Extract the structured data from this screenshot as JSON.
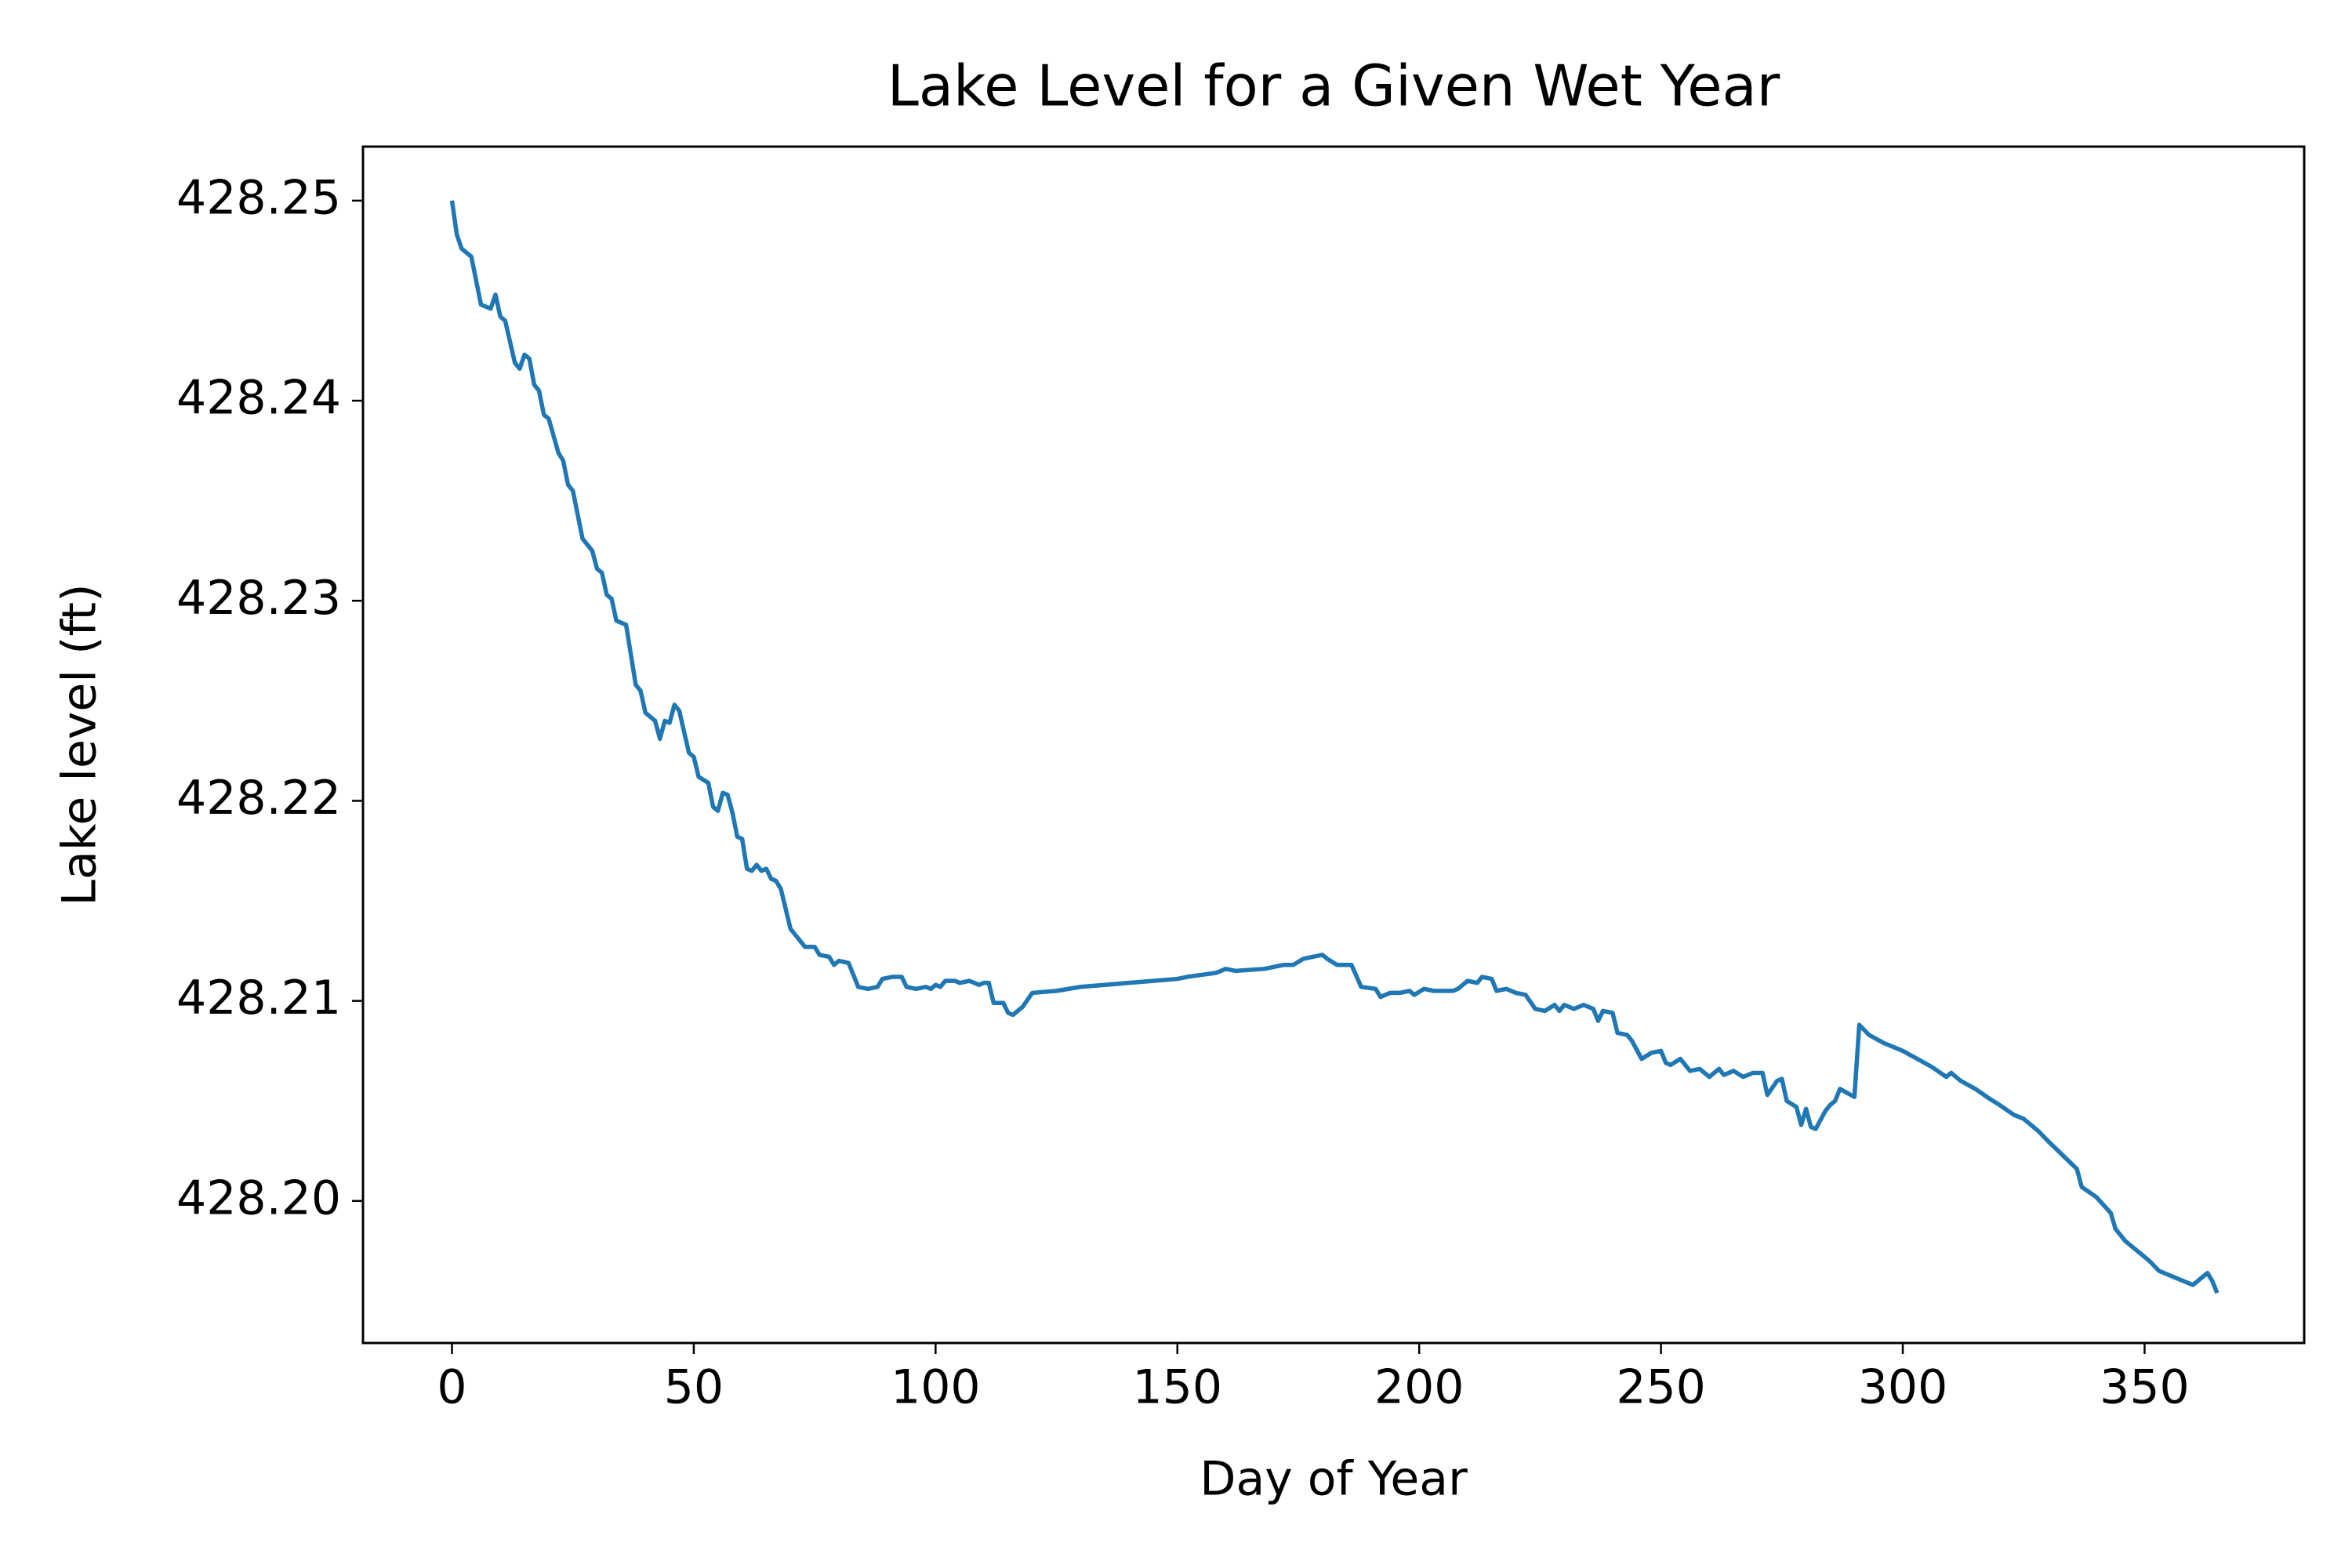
{
  "chart_data": {
    "type": "line",
    "title": "Lake Level for a Given Wet Year",
    "xlabel": "Day of Year",
    "ylabel": "Lake level (ft)",
    "color": "#1f77b4",
    "xlim": [
      -18.4,
      383.0
    ],
    "ylim": [
      428.1929,
      428.2527
    ],
    "xticks": [
      0,
      50,
      100,
      150,
      200,
      250,
      300,
      350
    ],
    "yticks": [
      {
        "value": 428.2,
        "label": "428.20"
      },
      428.21,
      428.22,
      428.23,
      428.24,
      428.25
    ],
    "x": [
      0,
      1,
      2,
      4,
      6,
      8,
      9,
      10,
      11,
      13,
      14,
      15,
      16,
      17,
      18,
      19,
      20,
      22,
      23,
      24,
      25,
      27,
      29,
      30,
      31,
      32,
      33,
      34,
      35,
      36,
      38,
      39,
      40,
      42,
      43,
      44,
      45,
      46,
      47,
      49,
      50,
      51,
      53,
      54,
      55,
      56,
      57,
      58,
      59,
      60,
      61,
      62,
      63,
      64,
      65,
      66,
      67,
      68,
      70,
      71,
      73,
      75,
      76,
      78,
      79,
      80,
      82,
      84,
      86,
      88,
      89,
      91,
      93,
      94,
      96,
      98,
      99,
      100,
      101,
      102,
      104,
      105,
      107,
      109,
      110,
      111,
      112,
      114,
      115,
      116,
      118,
      120,
      125,
      130,
      135,
      140,
      145,
      150,
      152,
      155,
      158,
      160,
      162,
      168,
      172,
      174,
      176,
      178,
      180,
      181,
      183,
      186,
      188,
      191,
      192,
      194,
      196,
      198,
      199,
      201,
      203,
      207,
      208,
      210,
      212,
      213,
      215,
      216,
      218,
      220,
      222,
      224,
      226,
      228,
      229,
      230,
      232,
      234,
      236,
      237,
      238,
      240,
      241,
      243,
      244,
      246,
      248,
      250,
      251,
      252,
      254,
      256,
      258,
      260,
      262,
      263,
      265,
      267,
      269,
      271,
      272,
      274,
      275,
      276,
      278,
      279,
      280,
      281,
      282,
      284,
      285,
      286,
      287,
      290,
      291,
      293,
      296,
      300,
      303,
      306,
      309,
      310,
      312,
      315,
      318,
      320,
      323,
      325,
      328,
      330,
      333,
      336,
      337,
      340,
      343,
      344,
      346,
      349,
      351,
      353,
      356,
      358,
      360,
      362,
      363,
      364,
      365
    ],
    "values": [
      428.25,
      428.2483,
      428.2476,
      428.2472,
      428.2448,
      428.2446,
      428.2453,
      428.2442,
      428.244,
      428.2419,
      428.2416,
      428.2423,
      428.2421,
      428.2408,
      428.2405,
      428.2393,
      428.2391,
      428.2374,
      428.237,
      428.2358,
      428.2355,
      428.2331,
      428.2325,
      428.2316,
      428.2314,
      428.2303,
      428.2301,
      428.229,
      428.2289,
      428.2288,
      428.2258,
      428.2255,
      428.2244,
      428.224,
      428.2231,
      428.224,
      428.2239,
      428.2248,
      428.2245,
      428.2224,
      428.2222,
      428.2212,
      428.2209,
      428.2197,
      428.2195,
      428.2204,
      428.2203,
      428.2194,
      428.2182,
      428.2181,
      428.2166,
      428.2165,
      428.2168,
      428.2165,
      428.2166,
      428.2161,
      428.216,
      428.2156,
      428.2136,
      428.2133,
      428.2127,
      428.2127,
      428.2123,
      428.2122,
      428.2118,
      428.212,
      428.2119,
      428.2107,
      428.2106,
      428.2107,
      428.2111,
      428.2112,
      428.2112,
      428.2107,
      428.2106,
      428.2107,
      428.2106,
      428.2108,
      428.2107,
      428.211,
      428.211,
      428.2109,
      428.211,
      428.2108,
      428.2109,
      428.2109,
      428.2099,
      428.2099,
      428.2094,
      428.2093,
      428.2097,
      428.2104,
      428.2105,
      428.2107,
      428.2108,
      428.2109,
      428.211,
      428.2111,
      428.2112,
      428.2113,
      428.2114,
      428.2116,
      428.2115,
      428.2116,
      428.2118,
      428.2118,
      428.2121,
      428.2122,
      428.2123,
      428.2121,
      428.2118,
      428.2118,
      428.2107,
      428.2106,
      428.2102,
      428.2104,
      428.2104,
      428.2105,
      428.2103,
      428.2106,
      428.2105,
      428.2105,
      428.2106,
      428.211,
      428.2109,
      428.2112,
      428.2111,
      428.2105,
      428.2106,
      428.2104,
      428.2103,
      428.2096,
      428.2095,
      428.2098,
      428.2095,
      428.2098,
      428.2096,
      428.2098,
      428.2096,
      428.209,
      428.2095,
      428.2094,
      428.2084,
      428.2083,
      428.208,
      428.2071,
      428.2074,
      428.2075,
      428.2069,
      428.2068,
      428.2071,
      428.2065,
      428.2066,
      428.2062,
      428.2066,
      428.2063,
      428.2065,
      428.2062,
      428.2064,
      428.2064,
      428.2053,
      428.206,
      428.2061,
      428.205,
      428.2047,
      428.2038,
      428.2046,
      428.2037,
      428.2036,
      428.2045,
      428.2048,
      428.205,
      428.2056,
      428.2052,
      428.2088,
      428.2083,
      428.2079,
      428.2075,
      428.2071,
      428.2067,
      428.2062,
      428.2064,
      428.206,
      428.2056,
      428.2051,
      428.2048,
      428.2043,
      428.2041,
      428.2035,
      428.203,
      428.2023,
      428.2016,
      428.2007,
      428.2002,
      428.1994,
      428.1986,
      428.198,
      428.1974,
      428.197,
      428.1965,
      428.1962,
      428.196,
      428.1958,
      428.1962,
      428.1964,
      428.196,
      428.1954
    ]
  }
}
